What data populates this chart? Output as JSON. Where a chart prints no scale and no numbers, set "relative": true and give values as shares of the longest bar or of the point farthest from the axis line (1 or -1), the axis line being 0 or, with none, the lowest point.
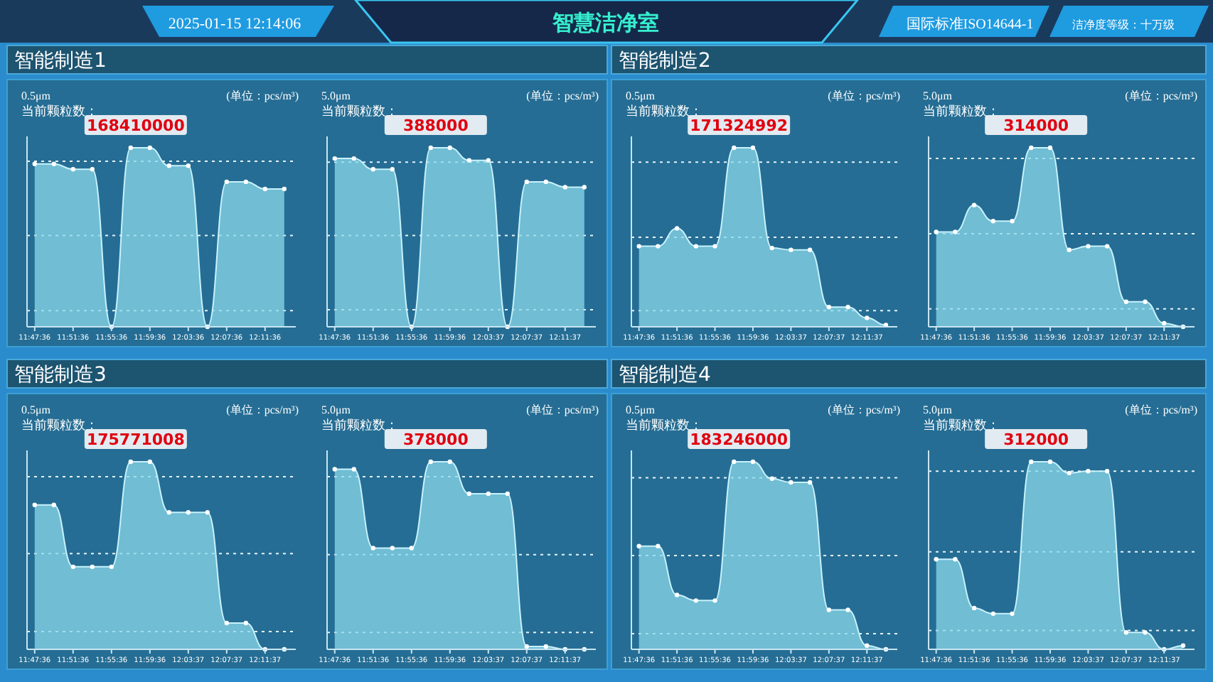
{
  "chart_data": [
    {
      "type": "other",
      "title": "智慧洁净室",
      "annotations": [
        "2025-01-15 12:14:06",
        "国际标准ISO14644-1",
        "洁净度等级：十万级"
      ]
    },
    {
      "type": "area",
      "title": "智能制造1",
      "subtitle": "0.5μm",
      "annotations": [
        "(单位：pcs/m³)",
        "当前颗粒数：",
        "168410000"
      ],
      "relative": true,
      "color": "#8ad8ea",
      "marker": "circle",
      "categories": [
        "11:47:36",
        null,
        "11:51:36",
        null,
        "11:55:36",
        null,
        "11:59:36",
        null,
        "12:03:36",
        null,
        "12:07:36",
        null,
        "12:11:36",
        null
      ],
      "values": [
        0.91,
        0.91,
        0.88,
        0.88,
        0,
        1,
        1,
        0.9,
        0.9,
        0,
        0.81,
        0.81,
        0.77,
        0.77
      ],
      "ref_lines": [
        {
          "axis": "y",
          "value": 0.925,
          "line_style": "dotted"
        },
        {
          "axis": "y",
          "value": 0.51,
          "line_style": "dotted"
        },
        {
          "axis": "y",
          "value": 0.09,
          "line_style": "dotted"
        }
      ]
    },
    {
      "type": "area",
      "subtitle": "5.0μm",
      "annotations": [
        "(单位：pcs/m³)",
        "当前颗粒数：",
        "388000"
      ],
      "relative": true,
      "color": "#8ad8ea",
      "marker": "circle",
      "categories": [
        "11:47:36",
        null,
        "11:51:36",
        null,
        "11:55:36",
        null,
        "11:59:36",
        null,
        "12:03:37",
        null,
        "12:07:37",
        null,
        "12:11:37",
        null
      ],
      "values": [
        0.94,
        0.94,
        0.88,
        0.88,
        0,
        1,
        1,
        0.93,
        0.93,
        0,
        0.81,
        0.81,
        0.78,
        0.78
      ],
      "ref_lines": [
        {
          "axis": "y",
          "value": 0.92,
          "line_style": "dotted"
        },
        {
          "axis": "y",
          "value": 0.51,
          "line_style": "dotted"
        },
        {
          "axis": "y",
          "value": 0.095,
          "line_style": "dotted"
        }
      ]
    },
    {
      "type": "area",
      "title": "智能制造2",
      "subtitle": "0.5μm",
      "annotations": [
        "(单位：pcs/m³)",
        "当前颗粒数：",
        "171324992"
      ],
      "relative": true,
      "color": "#8ad8ea",
      "marker": "circle",
      "categories": [
        "11:47:36",
        null,
        "11:51:36",
        null,
        "11:55:36",
        null,
        "11:59:36",
        null,
        "12:03:37",
        null,
        "12:07:37",
        null,
        "12:11:37",
        null
      ],
      "values": [
        0.45,
        0.45,
        0.55,
        0.45,
        0.45,
        1,
        1,
        0.44,
        0.43,
        0.43,
        0.11,
        0.11,
        0.05,
        0.01
      ],
      "ref_lines": [
        {
          "axis": "y",
          "value": 0.92,
          "line_style": "dotted"
        },
        {
          "axis": "y",
          "value": 0.5,
          "line_style": "dotted"
        },
        {
          "axis": "y",
          "value": 0.09,
          "line_style": "dotted"
        }
      ]
    },
    {
      "type": "area",
      "subtitle": "5.0μm",
      "annotations": [
        "(单位：pcs/m³)",
        "当前颗粒数：",
        "314000"
      ],
      "relative": true,
      "color": "#8ad8ea",
      "marker": "circle",
      "categories": [
        "11:47:36",
        null,
        "11:51:36",
        null,
        "11:55:36",
        null,
        "11:59:36",
        null,
        "12:03:37",
        null,
        "12:07:37",
        null,
        "12:11:37",
        null
      ],
      "values": [
        0.53,
        0.53,
        0.68,
        0.59,
        0.59,
        1,
        1,
        0.43,
        0.45,
        0.45,
        0.14,
        0.14,
        0.02,
        0
      ],
      "ref_lines": [
        {
          "axis": "y",
          "value": 0.94,
          "line_style": "dotted"
        },
        {
          "axis": "y",
          "value": 0.52,
          "line_style": "dotted"
        },
        {
          "axis": "y",
          "value": 0.1,
          "line_style": "dotted"
        }
      ]
    },
    {
      "type": "area",
      "title": "智能制造3",
      "subtitle": "0.5μm",
      "annotations": [
        "(单位：pcs/m³)",
        "当前颗粒数：",
        "175771008"
      ],
      "relative": true,
      "color": "#8ad8ea",
      "marker": "circle",
      "categories": [
        "11:47:36",
        null,
        "11:51:36",
        null,
        "11:55:36",
        null,
        "11:59:36",
        null,
        "12:03:37",
        null,
        "12:07:37",
        null,
        "12:11:37",
        null
      ],
      "values": [
        0.77,
        0.77,
        0.44,
        0.44,
        0.44,
        1,
        1,
        0.73,
        0.73,
        0.73,
        0.14,
        0.14,
        0,
        0
      ],
      "ref_lines": [
        {
          "axis": "y",
          "value": 0.92,
          "line_style": "dotted"
        },
        {
          "axis": "y",
          "value": 0.51,
          "line_style": "dotted"
        },
        {
          "axis": "y",
          "value": 0.095,
          "line_style": "dotted"
        }
      ]
    },
    {
      "type": "area",
      "subtitle": "5.0μm",
      "annotations": [
        "(单位：pcs/m³)",
        "当前颗粒数：",
        "378000"
      ],
      "relative": true,
      "color": "#8ad8ea",
      "marker": "circle",
      "categories": [
        "11:47:36",
        null,
        "11:51:36",
        null,
        "11:55:36",
        null,
        "11:59:36",
        null,
        "12:03:37",
        null,
        "12:07:37",
        null,
        "12:11:37",
        null
      ],
      "values": [
        0.96,
        0.96,
        0.54,
        0.54,
        0.54,
        1,
        1,
        0.83,
        0.83,
        0.83,
        0.015,
        0.015,
        0,
        0
      ],
      "ref_lines": [
        {
          "axis": "y",
          "value": 0.92,
          "line_style": "dotted"
        },
        {
          "axis": "y",
          "value": 0.505,
          "line_style": "dotted"
        },
        {
          "axis": "y",
          "value": 0.09,
          "line_style": "dotted"
        }
      ]
    },
    {
      "type": "area",
      "title": "智能制造4",
      "subtitle": "0.5μm",
      "annotations": [
        "(单位：pcs/m³)",
        "当前颗粒数：",
        "183246000"
      ],
      "relative": true,
      "color": "#8ad8ea",
      "marker": "circle",
      "categories": [
        "11:47:36",
        null,
        "11:51:36",
        null,
        "11:55:36",
        null,
        "11:59:36",
        null,
        "12:03:37",
        null,
        "12:07:37",
        null,
        "12:11:37",
        null
      ],
      "values": [
        0.55,
        0.55,
        0.29,
        0.26,
        0.26,
        1,
        1,
        0.91,
        0.89,
        0.89,
        0.21,
        0.21,
        0.02,
        0
      ],
      "ref_lines": [
        {
          "axis": "y",
          "value": 0.915,
          "line_style": "dotted"
        },
        {
          "axis": "y",
          "value": 0.5,
          "line_style": "dotted"
        },
        {
          "axis": "y",
          "value": 0.083,
          "line_style": "dotted"
        }
      ]
    },
    {
      "type": "area",
      "subtitle": "5.0μm",
      "annotations": [
        "(单位：pcs/m³)",
        "当前颗粒数：",
        "312000"
      ],
      "relative": true,
      "color": "#8ad8ea",
      "marker": "circle",
      "categories": [
        "11:47:36",
        null,
        "11:51:36",
        null,
        "11:55:36",
        null,
        "11:59:36",
        null,
        "12:03:37",
        null,
        "12:07:37",
        null,
        "12:11:37",
        null
      ],
      "values": [
        0.48,
        0.48,
        0.22,
        0.19,
        0.19,
        1,
        1,
        0.94,
        0.95,
        0.95,
        0.09,
        0.09,
        0,
        0.02
      ],
      "ref_lines": [
        {
          "axis": "y",
          "value": 0.95,
          "line_style": "dotted"
        },
        {
          "axis": "y",
          "value": 0.52,
          "line_style": "dotted"
        },
        {
          "axis": "y",
          "value": 0.1,
          "line_style": "dotted"
        }
      ]
    }
  ]
}
